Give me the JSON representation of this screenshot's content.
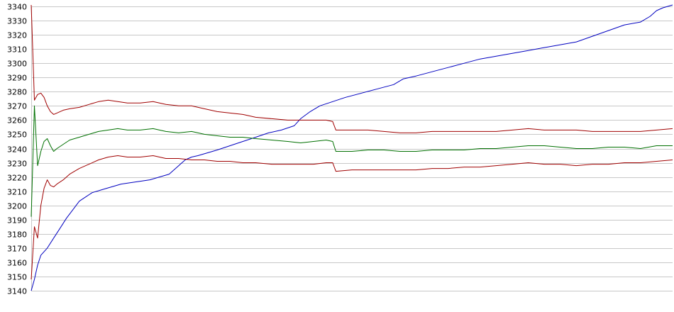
{
  "chart_data": {
    "type": "line",
    "title": "",
    "xlabel": "",
    "ylabel": "",
    "ylim": [
      3140,
      3340
    ],
    "yticks": [
      3140,
      3150,
      3160,
      3170,
      3180,
      3190,
      3200,
      3210,
      3220,
      3230,
      3240,
      3250,
      3260,
      3270,
      3280,
      3290,
      3300,
      3310,
      3320,
      3330,
      3340
    ],
    "xlim": [
      0,
      200
    ],
    "grid": true,
    "legend": "none",
    "series": [
      {
        "color": "#0000c0",
        "points": [
          [
            0,
            3140
          ],
          [
            1,
            3148
          ],
          [
            2,
            3158
          ],
          [
            3,
            3165
          ],
          [
            5,
            3170
          ],
          [
            7,
            3177
          ],
          [
            9,
            3184
          ],
          [
            11,
            3191
          ],
          [
            13,
            3197
          ],
          [
            15,
            3203
          ],
          [
            17,
            3206
          ],
          [
            19,
            3209
          ],
          [
            22,
            3211
          ],
          [
            25,
            3213
          ],
          [
            28,
            3215
          ],
          [
            31,
            3216
          ],
          [
            34,
            3217
          ],
          [
            37,
            3218
          ],
          [
            40,
            3220
          ],
          [
            43,
            3222
          ],
          [
            46,
            3228
          ],
          [
            48,
            3232
          ],
          [
            50,
            3234
          ],
          [
            52,
            3235
          ],
          [
            55,
            3237
          ],
          [
            58,
            3239
          ],
          [
            62,
            3242
          ],
          [
            66,
            3245
          ],
          [
            70,
            3248
          ],
          [
            74,
            3251
          ],
          [
            78,
            3253
          ],
          [
            82,
            3256
          ],
          [
            84,
            3261
          ],
          [
            87,
            3266
          ],
          [
            90,
            3270
          ],
          [
            94,
            3273
          ],
          [
            98,
            3276
          ],
          [
            103,
            3279
          ],
          [
            108,
            3282
          ],
          [
            113,
            3285
          ],
          [
            116,
            3289
          ],
          [
            120,
            3291
          ],
          [
            125,
            3294
          ],
          [
            130,
            3297
          ],
          [
            135,
            3300
          ],
          [
            140,
            3303
          ],
          [
            145,
            3305
          ],
          [
            150,
            3307
          ],
          [
            155,
            3309
          ],
          [
            160,
            3311
          ],
          [
            165,
            3313
          ],
          [
            170,
            3315
          ],
          [
            175,
            3319
          ],
          [
            180,
            3323
          ],
          [
            185,
            3327
          ],
          [
            190,
            3329
          ],
          [
            193,
            3333
          ],
          [
            195,
            3337
          ],
          [
            197,
            3339
          ],
          [
            200,
            3341
          ]
        ]
      },
      {
        "color": "#007000",
        "points": [
          [
            0,
            3192
          ],
          [
            1,
            3270
          ],
          [
            2,
            3228
          ],
          [
            3,
            3238
          ],
          [
            4,
            3245
          ],
          [
            5,
            3247
          ],
          [
            6,
            3242
          ],
          [
            7,
            3238
          ],
          [
            8,
            3240
          ],
          [
            10,
            3243
          ],
          [
            12,
            3246
          ],
          [
            15,
            3248
          ],
          [
            18,
            3250
          ],
          [
            21,
            3252
          ],
          [
            24,
            3253
          ],
          [
            27,
            3254
          ],
          [
            30,
            3253
          ],
          [
            34,
            3253
          ],
          [
            38,
            3254
          ],
          [
            42,
            3252
          ],
          [
            46,
            3251
          ],
          [
            50,
            3252
          ],
          [
            54,
            3250
          ],
          [
            58,
            3249
          ],
          [
            62,
            3248
          ],
          [
            66,
            3248
          ],
          [
            70,
            3247
          ],
          [
            75,
            3246
          ],
          [
            80,
            3245
          ],
          [
            84,
            3244
          ],
          [
            88,
            3245
          ],
          [
            92,
            3246
          ],
          [
            94,
            3245
          ],
          [
            95,
            3238
          ],
          [
            100,
            3238
          ],
          [
            105,
            3239
          ],
          [
            110,
            3239
          ],
          [
            115,
            3238
          ],
          [
            120,
            3238
          ],
          [
            125,
            3239
          ],
          [
            130,
            3239
          ],
          [
            135,
            3239
          ],
          [
            140,
            3240
          ],
          [
            145,
            3240
          ],
          [
            150,
            3241
          ],
          [
            155,
            3242
          ],
          [
            160,
            3242
          ],
          [
            165,
            3241
          ],
          [
            170,
            3240
          ],
          [
            175,
            3240
          ],
          [
            180,
            3241
          ],
          [
            185,
            3241
          ],
          [
            190,
            3240
          ],
          [
            195,
            3242
          ],
          [
            200,
            3242
          ]
        ]
      },
      {
        "color": "#a00000",
        "points": [
          [
            0,
            3341
          ],
          [
            1,
            3274
          ],
          [
            2,
            3278
          ],
          [
            3,
            3279
          ],
          [
            4,
            3276
          ],
          [
            5,
            3270
          ],
          [
            6,
            3266
          ],
          [
            7,
            3264
          ],
          [
            8,
            3265
          ],
          [
            10,
            3267
          ],
          [
            12,
            3268
          ],
          [
            15,
            3269
          ],
          [
            18,
            3271
          ],
          [
            21,
            3273
          ],
          [
            24,
            3274
          ],
          [
            27,
            3273
          ],
          [
            30,
            3272
          ],
          [
            34,
            3272
          ],
          [
            38,
            3273
          ],
          [
            42,
            3271
          ],
          [
            46,
            3270
          ],
          [
            50,
            3270
          ],
          [
            54,
            3268
          ],
          [
            58,
            3266
          ],
          [
            62,
            3265
          ],
          [
            66,
            3264
          ],
          [
            70,
            3262
          ],
          [
            75,
            3261
          ],
          [
            80,
            3260
          ],
          [
            84,
            3260
          ],
          [
            88,
            3260
          ],
          [
            92,
            3260
          ],
          [
            94,
            3259
          ],
          [
            95,
            3253
          ],
          [
            100,
            3253
          ],
          [
            105,
            3253
          ],
          [
            110,
            3252
          ],
          [
            115,
            3251
          ],
          [
            120,
            3251
          ],
          [
            125,
            3252
          ],
          [
            130,
            3252
          ],
          [
            135,
            3252
          ],
          [
            140,
            3252
          ],
          [
            145,
            3252
          ],
          [
            150,
            3253
          ],
          [
            155,
            3254
          ],
          [
            160,
            3253
          ],
          [
            165,
            3253
          ],
          [
            170,
            3253
          ],
          [
            175,
            3252
          ],
          [
            180,
            3252
          ],
          [
            185,
            3252
          ],
          [
            190,
            3252
          ],
          [
            195,
            3253
          ],
          [
            200,
            3254
          ]
        ]
      },
      {
        "color": "#a00000",
        "points": [
          [
            0,
            3148
          ],
          [
            1,
            3185
          ],
          [
            2,
            3177
          ],
          [
            3,
            3200
          ],
          [
            4,
            3212
          ],
          [
            5,
            3218
          ],
          [
            6,
            3214
          ],
          [
            7,
            3213
          ],
          [
            8,
            3215
          ],
          [
            10,
            3218
          ],
          [
            12,
            3222
          ],
          [
            15,
            3226
          ],
          [
            18,
            3229
          ],
          [
            21,
            3232
          ],
          [
            24,
            3234
          ],
          [
            27,
            3235
          ],
          [
            30,
            3234
          ],
          [
            34,
            3234
          ],
          [
            38,
            3235
          ],
          [
            42,
            3233
          ],
          [
            46,
            3233
          ],
          [
            50,
            3232
          ],
          [
            54,
            3232
          ],
          [
            58,
            3231
          ],
          [
            62,
            3231
          ],
          [
            66,
            3230
          ],
          [
            70,
            3230
          ],
          [
            75,
            3229
          ],
          [
            80,
            3229
          ],
          [
            84,
            3229
          ],
          [
            88,
            3229
          ],
          [
            92,
            3230
          ],
          [
            94,
            3230
          ],
          [
            95,
            3224
          ],
          [
            100,
            3225
          ],
          [
            105,
            3225
          ],
          [
            110,
            3225
          ],
          [
            115,
            3225
          ],
          [
            120,
            3225
          ],
          [
            125,
            3226
          ],
          [
            130,
            3226
          ],
          [
            135,
            3227
          ],
          [
            140,
            3227
          ],
          [
            145,
            3228
          ],
          [
            150,
            3229
          ],
          [
            155,
            3230
          ],
          [
            160,
            3229
          ],
          [
            165,
            3229
          ],
          [
            170,
            3228
          ],
          [
            175,
            3229
          ],
          [
            180,
            3229
          ],
          [
            185,
            3230
          ],
          [
            190,
            3230
          ],
          [
            195,
            3231
          ],
          [
            200,
            3232
          ]
        ]
      }
    ]
  }
}
